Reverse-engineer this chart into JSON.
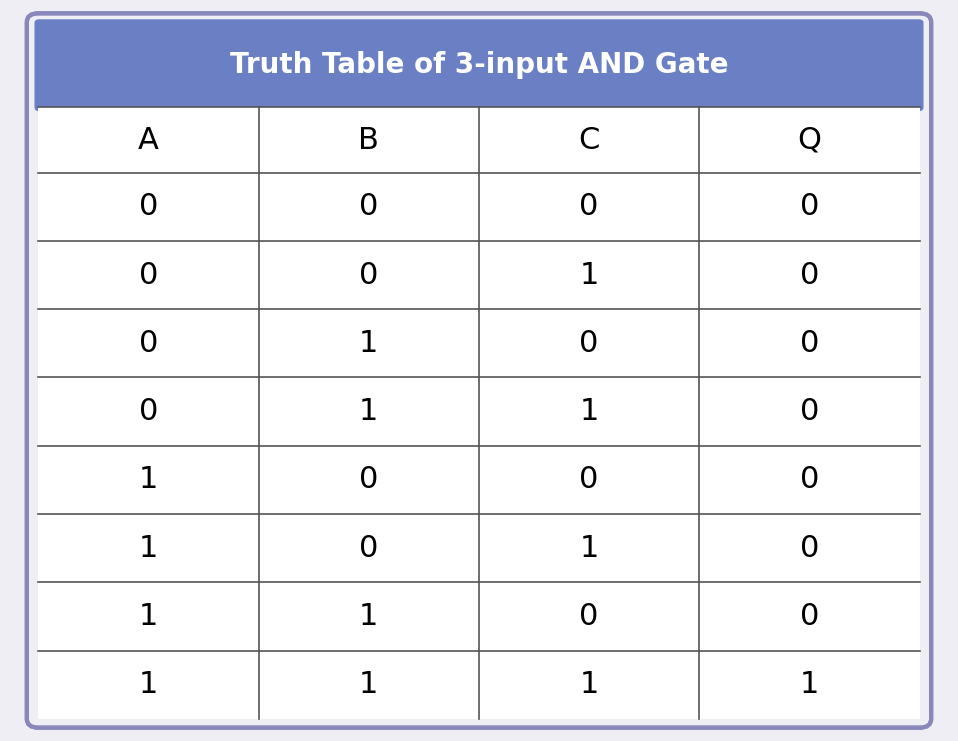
{
  "title": "Truth Table of 3-input AND Gate",
  "headers": [
    "A",
    "B",
    "C",
    "Q"
  ],
  "rows": [
    [
      "0",
      "0",
      "0",
      "0"
    ],
    [
      "0",
      "0",
      "1",
      "0"
    ],
    [
      "0",
      "1",
      "0",
      "0"
    ],
    [
      "0",
      "1",
      "1",
      "0"
    ],
    [
      "1",
      "0",
      "0",
      "0"
    ],
    [
      "1",
      "0",
      "1",
      "0"
    ],
    [
      "1",
      "1",
      "0",
      "0"
    ],
    [
      "1",
      "1",
      "1",
      "1"
    ]
  ],
  "header_bg_color": "#6B80C4",
  "header_text_color": "#FFFFFF",
  "cell_bg_color": "#FFFFFF",
  "cell_text_color": "#000000",
  "border_color": "#555555",
  "outer_border_color": "#8888bb",
  "title_fontsize": 20,
  "header_fontsize": 22,
  "cell_fontsize": 22,
  "fig_bg_color": "#eeeef4"
}
